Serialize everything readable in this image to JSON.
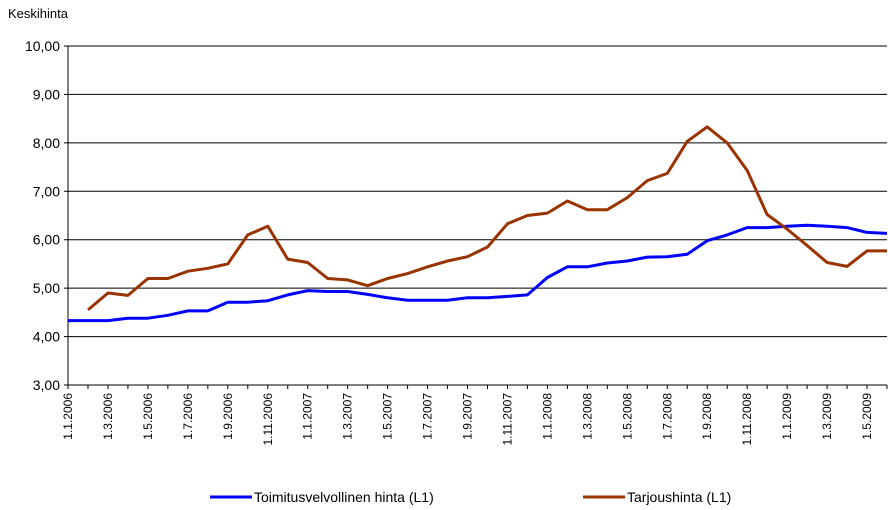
{
  "chart_data": {
    "type": "line",
    "ylabel": "Keskihinta",
    "categories": [
      "1.1.2006",
      null,
      "1.3.2006",
      null,
      "1.5.2006",
      null,
      "1.7.2006",
      null,
      "1.9.2006",
      null,
      "1.11.2006",
      null,
      "1.1.2007",
      null,
      "1.3.2007",
      null,
      "1.5.2007",
      null,
      "1.7.2007",
      null,
      "1.9.2007",
      null,
      "1.11.2007",
      null,
      "1.1.2008",
      null,
      "1.3.2008",
      null,
      "1.5.2008",
      null,
      "1.7.2008",
      null,
      "1.9.2008",
      null,
      "1.11.2008",
      null,
      "1.1.2009",
      null,
      "1.3.2009",
      null,
      "1.5.2009",
      null
    ],
    "series": [
      {
        "name": "Toimitusvelvollinen hinta (L1)",
        "color": "#0000ff",
        "values": [
          4.33,
          4.33,
          4.33,
          4.38,
          4.38,
          4.44,
          4.53,
          4.53,
          4.71,
          4.71,
          4.74,
          4.86,
          4.95,
          4.93,
          4.93,
          4.87,
          4.8,
          4.75,
          4.75,
          4.75,
          4.8,
          4.8,
          4.83,
          4.86,
          5.22,
          5.44,
          5.44,
          5.52,
          5.56,
          5.64,
          5.65,
          5.7,
          5.98,
          6.1,
          6.25,
          6.25,
          6.28,
          6.3,
          6.28,
          6.25,
          6.15,
          6.13
        ]
      },
      {
        "name": "Tarjoushinta (L1)",
        "color": "#993300",
        "values": [
          null,
          4.55,
          4.9,
          4.85,
          5.2,
          5.2,
          5.35,
          5.41,
          5.5,
          6.1,
          6.28,
          5.6,
          5.53,
          5.2,
          5.17,
          5.05,
          5.2,
          5.3,
          5.44,
          5.56,
          5.65,
          5.85,
          6.33,
          6.5,
          6.55,
          6.8,
          6.62,
          6.62,
          6.87,
          7.22,
          7.37,
          8.03,
          8.33,
          8.0,
          7.43,
          6.52,
          6.22,
          5.88,
          5.53,
          5.45,
          5.77,
          5.77
        ]
      }
    ],
    "ylim": [
      3,
      10
    ],
    "yticks": [
      {
        "value": 3,
        "label": "3,00"
      },
      {
        "value": 4,
        "label": "4,00"
      },
      {
        "value": 5,
        "label": "5,00"
      },
      {
        "value": 6,
        "label": "6,00"
      },
      {
        "value": 7,
        "label": "7,00"
      },
      {
        "value": 8,
        "label": "8,00"
      },
      {
        "value": 9,
        "label": "9,00"
      },
      {
        "value": 10,
        "label": "10,00"
      }
    ],
    "grid": true,
    "legend": "bottom"
  }
}
